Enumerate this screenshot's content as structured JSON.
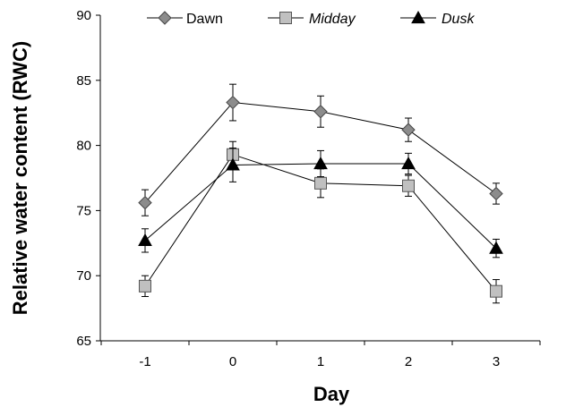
{
  "chart_data": {
    "type": "line",
    "x": [
      -1,
      0,
      1,
      2,
      3
    ],
    "xticks": [
      "-1",
      "0",
      "1",
      "2",
      "3"
    ],
    "yticks": [
      "65",
      "70",
      "75",
      "80",
      "85",
      "90"
    ],
    "ylim": [
      65,
      90
    ],
    "xlabel": "Day",
    "ylabel": "Relative water content (RWC)",
    "legend_position": "top",
    "grid": false,
    "series": [
      {
        "name": "Dawn",
        "marker": "diamond",
        "marker_color": "#8c8c8c",
        "italic": false,
        "values": [
          75.6,
          83.3,
          82.6,
          81.2,
          76.3
        ],
        "errors": [
          1.0,
          1.4,
          1.2,
          0.9,
          0.8
        ]
      },
      {
        "name": "Midday",
        "marker": "square",
        "marker_color": "#c0c0c0",
        "italic": true,
        "values": [
          69.2,
          79.3,
          77.1,
          76.9,
          68.8
        ],
        "errors": [
          0.8,
          1.0,
          1.1,
          0.8,
          0.9
        ]
      },
      {
        "name": "Dusk",
        "marker": "triangle",
        "marker_color": "#000000",
        "italic": true,
        "values": [
          72.7,
          78.5,
          78.6,
          78.6,
          72.1
        ],
        "errors": [
          0.9,
          1.3,
          1.0,
          0.8,
          0.7
        ]
      }
    ]
  }
}
